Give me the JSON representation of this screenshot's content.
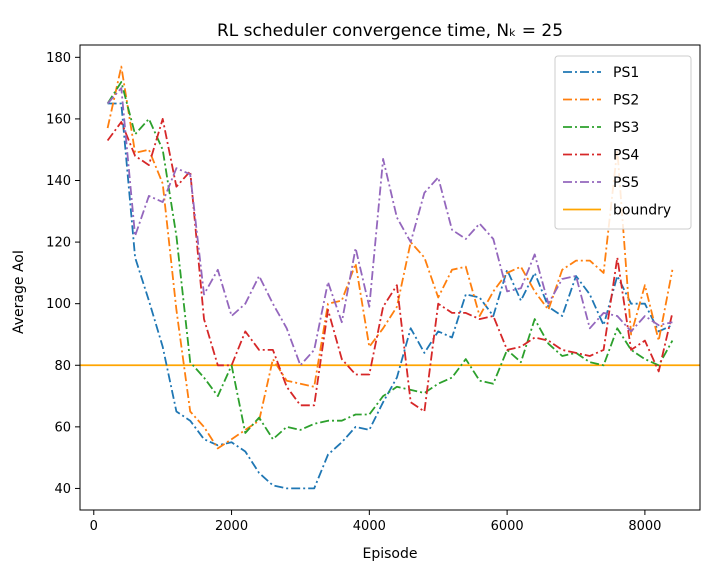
{
  "chart_data": {
    "type": "line",
    "title": "RL scheduler convergence time, Nₖ = 25",
    "xlabel": "Episode",
    "ylabel": "Average AoI",
    "xlim": [
      -200,
      8800
    ],
    "ylim": [
      33,
      184
    ],
    "xticks": [
      0,
      2000,
      4000,
      6000,
      8000
    ],
    "yticks": [
      40,
      60,
      80,
      100,
      120,
      140,
      160,
      180
    ],
    "grid": false,
    "legend_position": "top-right",
    "x": [
      200,
      400,
      600,
      800,
      1000,
      1200,
      1400,
      1600,
      1800,
      2000,
      2200,
      2400,
      2600,
      2800,
      3000,
      3200,
      3400,
      3600,
      3800,
      4000,
      4200,
      4400,
      4600,
      4800,
      5000,
      5200,
      5400,
      5600,
      5800,
      6000,
      6200,
      6400,
      6600,
      6800,
      7000,
      7200,
      7400,
      7600,
      7800,
      8000,
      8200,
      8400
    ],
    "series": [
      {
        "name": "PS1",
        "color": "#1f77b4",
        "values": [
          165,
          165,
          115,
          101,
          86,
          65,
          62,
          56,
          54,
          55,
          52,
          45,
          41,
          40,
          40,
          40,
          51,
          55,
          60,
          59,
          68,
          76,
          92,
          84,
          91,
          89,
          103,
          102,
          96,
          111,
          101,
          110,
          99,
          96,
          109,
          103,
          93,
          109,
          100,
          100,
          91,
          93
        ]
      },
      {
        "name": "PS2",
        "color": "#ff7f0e",
        "values": [
          157,
          177,
          149,
          150,
          139,
          98,
          65,
          60,
          53,
          56,
          59,
          62,
          82,
          75,
          74,
          73,
          100,
          101,
          113,
          86,
          92,
          99,
          120,
          115,
          102,
          111,
          112,
          96,
          104,
          110,
          112,
          104,
          98,
          111,
          114,
          114,
          110,
          150,
          90,
          106,
          88,
          111
        ]
      },
      {
        "name": "PS3",
        "color": "#2ca02c",
        "values": [
          165,
          172,
          155,
          160,
          150,
          122,
          81,
          76,
          70,
          80,
          58,
          63,
          56,
          60,
          59,
          61,
          62,
          62,
          64,
          64,
          70,
          73,
          72,
          71,
          74,
          76,
          82,
          75,
          74,
          85,
          81,
          95,
          87,
          83,
          84,
          81,
          80,
          92,
          85,
          82,
          80,
          88
        ]
      },
      {
        "name": "PS4",
        "color": "#d62728",
        "values": [
          153,
          159,
          148,
          145,
          160,
          138,
          143,
          95,
          80,
          80,
          91,
          85,
          85,
          73,
          67,
          67,
          98,
          82,
          77,
          77,
          99,
          106,
          68,
          65,
          100,
          97,
          97,
          95,
          96,
          85,
          86,
          89,
          88,
          85,
          84,
          83,
          85,
          115,
          85,
          88,
          78,
          97
        ]
      },
      {
        "name": "PS5",
        "color": "#9467bd",
        "values": [
          165,
          170,
          122,
          135,
          133,
          144,
          142,
          103,
          111,
          96,
          100,
          109,
          100,
          92,
          80,
          85,
          107,
          94,
          118,
          99,
          147,
          128,
          120,
          136,
          141,
          124,
          121,
          126,
          121,
          104,
          105,
          116,
          100,
          108,
          109,
          92,
          97,
          96,
          91,
          96,
          93,
          94
        ]
      }
    ],
    "reference_lines": [
      {
        "name": "boundry",
        "color": "#ffa500",
        "y": 80
      }
    ]
  }
}
